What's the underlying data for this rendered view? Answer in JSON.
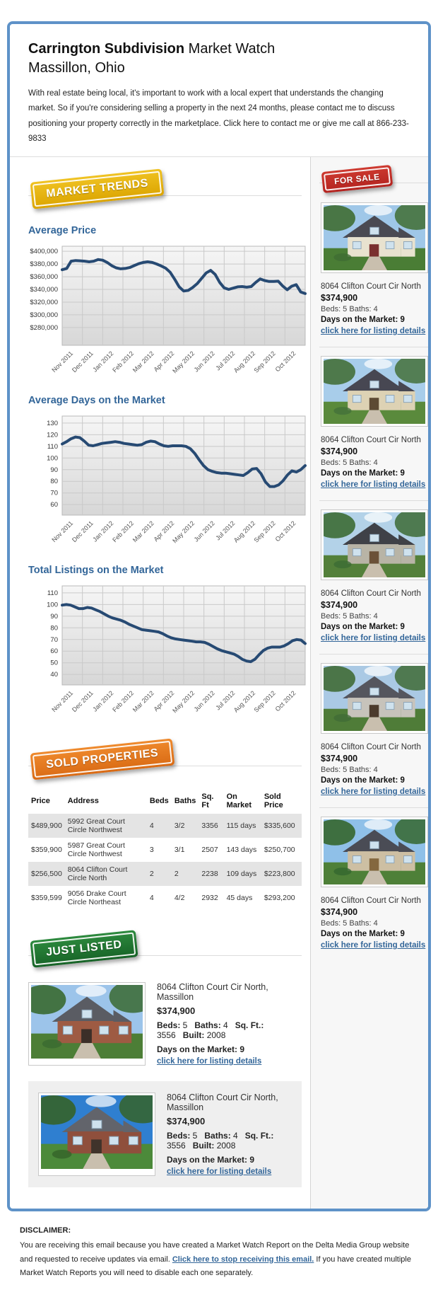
{
  "header": {
    "title_bold": "Carrington Subdivision",
    "title_rest": " Market Watch",
    "subtitle": "Massillon, Ohio",
    "intro": "With real estate being local, it's important to work with a local expert that understands the changing market. So if you're considering selling a property in the next 24 months, please contact me to discuss positioning your property correctly in the marketplace. Click here to contact me or give me call at 866-233-9833"
  },
  "badges": {
    "market_trends": "MARKET TRENDS",
    "for_sale": "FOR SALE",
    "sold_properties": "SOLD PROPERTIES",
    "just_listed": "JUST LISTED"
  },
  "colors": {
    "accent_blue": "#336699",
    "line": "#274a73",
    "frame_border": "#5e92c8",
    "badge_gold": "#e3ae00",
    "badge_red": "#bf2c25",
    "badge_orange": "#e07b27",
    "badge_green": "#1e7b30"
  },
  "chart_data": [
    {
      "type": "line",
      "title": "Average Price",
      "x_labels": [
        "Nov 2011",
        "Dec 2011",
        "Jan 2012",
        "Feb 2012",
        "Mar 2012",
        "Apr 2012",
        "May 2012",
        "Jun 2012",
        "Jul 2012",
        "Aug 2012",
        "Sep 2012",
        "Oct 2012"
      ],
      "values": [
        371000,
        373000,
        384500,
        385500,
        385000,
        384500,
        383500,
        384500,
        387000,
        386000,
        382500,
        377500,
        374000,
        372500,
        373000,
        374500,
        377500,
        380500,
        382500,
        383500,
        382500,
        380000,
        377000,
        373500,
        367000,
        356000,
        344000,
        337500,
        338500,
        343000,
        349000,
        357500,
        366000,
        370000,
        363500,
        351000,
        342500,
        340000,
        342000,
        344000,
        344500,
        343500,
        344500,
        351000,
        356500,
        354000,
        352500,
        352500,
        353000,
        345500,
        339500,
        345000,
        347500,
        336000,
        333500
      ],
      "ylim": [
        252000,
        408000
      ],
      "yticks": [
        400000,
        380000,
        360000,
        340000,
        320000,
        300000,
        280000
      ],
      "ytick_labels": [
        "$400,000",
        "$380,000",
        "$360,000",
        "$340,000",
        "$320,000",
        "$300,000",
        "$280,000"
      ],
      "grid": true,
      "legend": "none"
    },
    {
      "type": "line",
      "title": "Average Days on the Market",
      "x_labels": [
        "Nov 2011",
        "Dec 2011",
        "Jan 2012",
        "Feb 2012",
        "Mar 2012",
        "Apr 2012",
        "May 2012",
        "Jun 2012",
        "Jul 2012",
        "Aug 2012",
        "Sep 2012",
        "Oct 2012"
      ],
      "values": [
        112,
        114,
        116.5,
        118,
        117.5,
        114.5,
        111,
        110.5,
        111.5,
        112.5,
        113,
        113.5,
        114,
        113.5,
        112.5,
        112,
        111.5,
        111,
        111.5,
        113.5,
        114.5,
        114,
        112,
        110.5,
        110,
        110.5,
        110.5,
        110.5,
        110,
        108,
        104,
        98.5,
        93.5,
        90,
        88.5,
        87.5,
        87,
        87,
        86.5,
        86,
        85.5,
        85,
        87.5,
        90.5,
        91,
        86.5,
        79.5,
        75.5,
        75.5,
        77,
        80.5,
        85.5,
        89,
        88,
        90,
        93.5
      ],
      "ylim": [
        51,
        136
      ],
      "yticks": [
        130,
        120,
        110,
        100,
        90,
        80,
        70,
        60
      ],
      "ytick_labels": [
        "130",
        "120",
        "110",
        "100",
        "90",
        "80",
        "70",
        "60"
      ],
      "grid": true,
      "legend": "none"
    },
    {
      "type": "line",
      "title": "Total Listings on the Market",
      "x_labels": [
        "Nov 2011",
        "Dec 2011",
        "Jan 2012",
        "Feb 2012",
        "Mar 2012",
        "Apr 2012",
        "May 2012",
        "Jun 2012",
        "Jul 2012",
        "Aug 2012",
        "Sep 2012",
        "Oct 2012"
      ],
      "values": [
        99.5,
        100,
        99.5,
        98,
        96.5,
        96.5,
        97.5,
        97,
        95.5,
        94,
        92,
        90,
        88.5,
        87.5,
        86.5,
        85,
        83,
        81.5,
        80,
        78.5,
        78,
        77.5,
        77,
        76.5,
        75,
        73,
        71.5,
        70.5,
        70,
        69.5,
        69,
        68.5,
        68,
        68,
        67.5,
        66,
        64,
        62,
        60.5,
        59.5,
        58.5,
        57.5,
        55.5,
        53,
        51.5,
        51,
        53,
        57,
        60.5,
        62.5,
        63.5,
        63.5,
        63.5,
        64.5,
        66.5,
        69,
        70,
        69.5,
        66.5
      ],
      "ylim": [
        31,
        116
      ],
      "yticks": [
        110,
        100,
        90,
        80,
        70,
        60,
        50,
        40
      ],
      "ytick_labels": [
        "110",
        "100",
        "90",
        "80",
        "70",
        "60",
        "50",
        "40"
      ],
      "grid": true,
      "legend": "none"
    }
  ],
  "for_sale_listings": [
    {
      "address": "8064 Clifton Court Cir North",
      "price": "$374,900",
      "beds_baths": "Beds: 5 Baths: 4",
      "days_label": "Days on the Market:",
      "days_value": "9",
      "link": "click here for listing details",
      "photo": "house-photo-1"
    },
    {
      "address": "8064 Clifton Court Cir North",
      "price": "$374,900",
      "beds_baths": "Beds: 5 Baths: 4",
      "days_label": "Days on the Market:",
      "days_value": "9",
      "link": "click here for listing details",
      "photo": "house-photo-2"
    },
    {
      "address": "8064 Clifton Court Cir North",
      "price": "$374,900",
      "beds_baths": "Beds: 5 Baths: 4",
      "days_label": "Days on the Market:",
      "days_value": "9",
      "link": "click here for listing details",
      "photo": "house-photo-3"
    },
    {
      "address": "8064 Clifton Court Cir North",
      "price": "$374,900",
      "beds_baths": "Beds: 5 Baths: 4",
      "days_label": "Days on the Market:",
      "days_value": "9",
      "link": "click here for listing details",
      "photo": "house-photo-4"
    },
    {
      "address": "8064 Clifton Court Cir North",
      "price": "$374,900",
      "beds_baths": "Beds: 5 Baths: 4",
      "days_label": "Days on the Market:",
      "days_value": "9",
      "link": "click here for listing details",
      "photo": "house-photo-5"
    }
  ],
  "sold_table": {
    "headers": [
      "Price",
      "Address",
      "Beds",
      "Baths",
      "Sq. Ft",
      "On Market",
      "Sold Price"
    ],
    "rows": [
      [
        "$489,900",
        "5992 Great Court Circle Northwest",
        "4",
        "3/2",
        "3356",
        "115 days",
        "$335,600"
      ],
      [
        "$359,900",
        "5987 Great Court Circle Northwest",
        "3",
        "3/1",
        "2507",
        "143 days",
        "$250,700"
      ],
      [
        "$256,500",
        "8064 Clifton Court Circle North",
        "2",
        "2",
        "2238",
        "109 days",
        "$223,800"
      ],
      [
        "$359,599",
        "9056 Drake Court Circle Northeast",
        "4",
        "4/2",
        "2932",
        "45 days",
        "$293,200"
      ]
    ]
  },
  "just_listed": [
    {
      "address": "8064 Clifton Court Cir North, Massillon",
      "price": "$374,900",
      "specs": [
        {
          "label": "Beds:",
          "value": "5"
        },
        {
          "label": "Baths:",
          "value": "4"
        },
        {
          "label": "Sq. Ft.:",
          "value": "3556"
        },
        {
          "label": "Built:",
          "value": "2008"
        }
      ],
      "days_label": "Days on the Market:",
      "days_value": "9",
      "link": "click here for listing details",
      "photo": "house-photo-6"
    },
    {
      "address": "8064 Clifton Court Cir North, Massillon",
      "price": "$374,900",
      "specs": [
        {
          "label": "Beds:",
          "value": "5"
        },
        {
          "label": "Baths:",
          "value": "4"
        },
        {
          "label": "Sq. Ft.:",
          "value": "3556"
        },
        {
          "label": "Built:",
          "value": "2008"
        }
      ],
      "days_label": "Days on the Market:",
      "days_value": "9",
      "link": "click here for listing details",
      "photo": "house-photo-7"
    }
  ],
  "footer": {
    "heading": "DISCLAIMER:",
    "text_before": "You are receiving this email because you have created a Market Watch Report on the Delta Media Group website and requested to receive updates via email. ",
    "link": "Click here to stop receiving this email.",
    "text_after": " If you have created multiple Market Watch Reports you will need to disable each one separately."
  }
}
